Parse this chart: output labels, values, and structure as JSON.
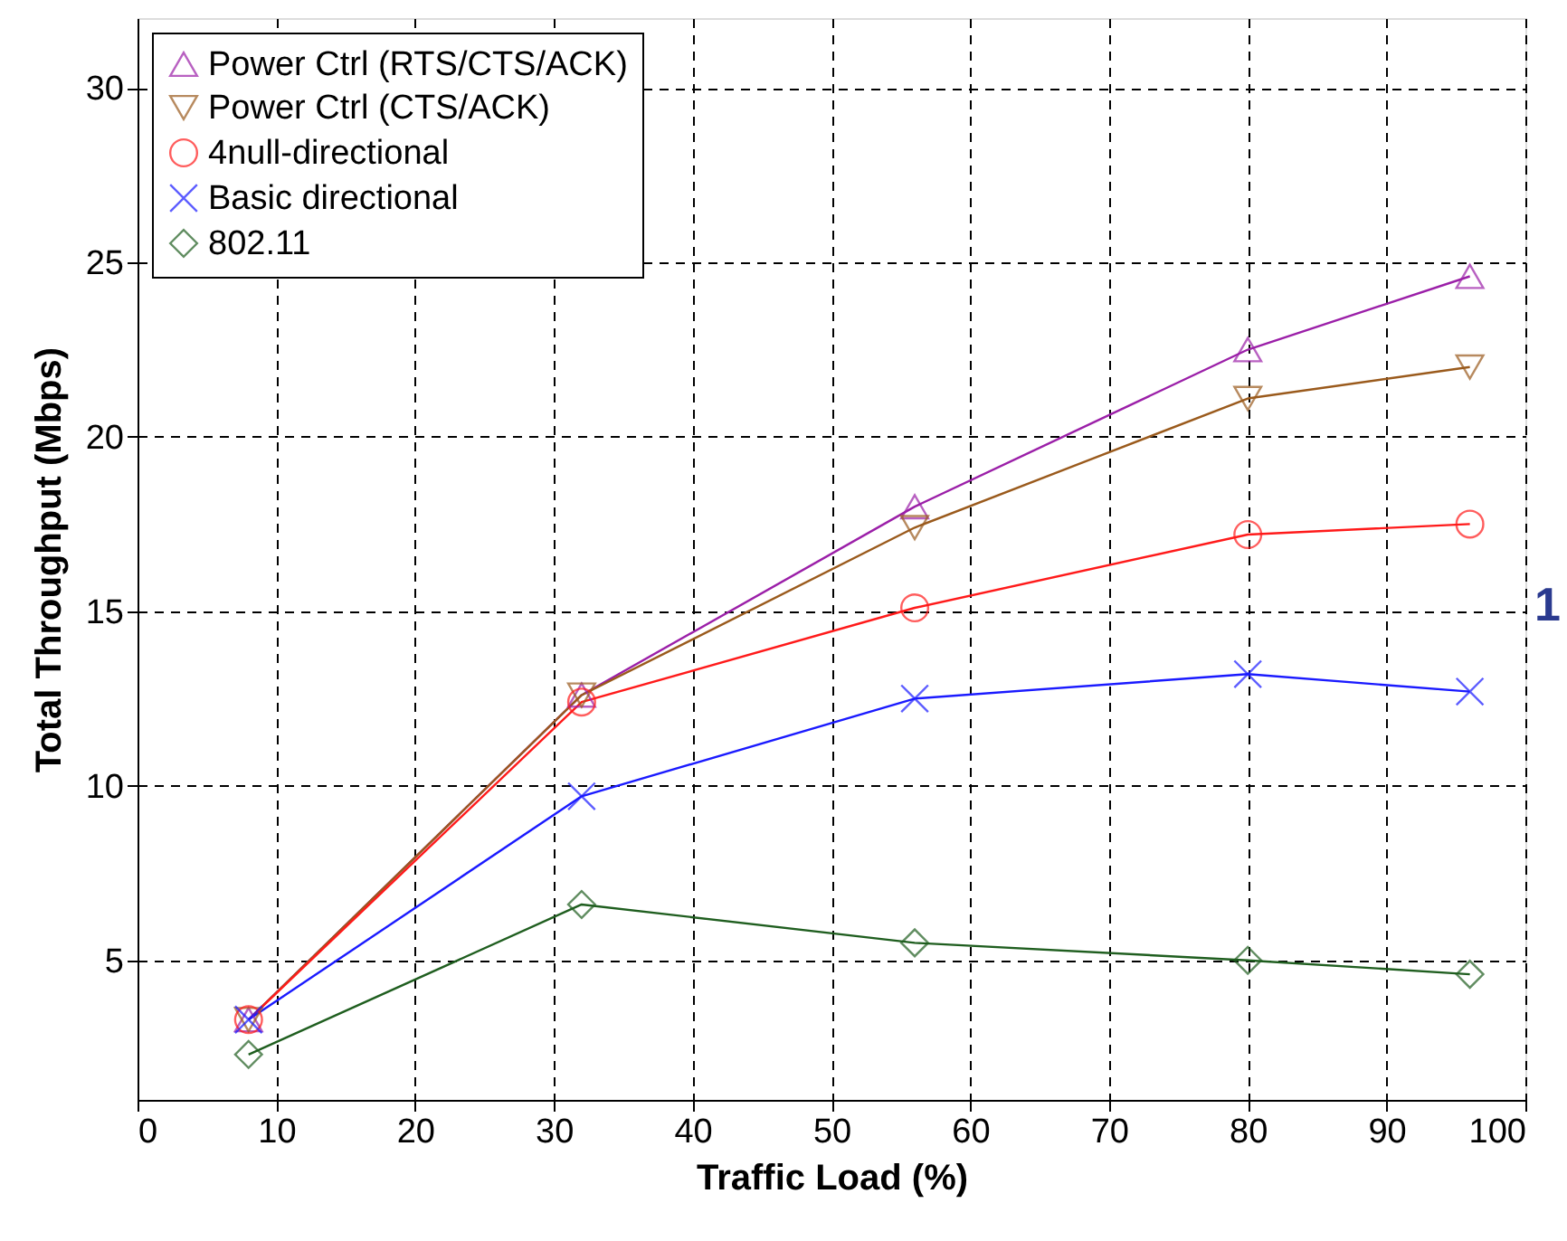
{
  "chart_data": {
    "type": "line",
    "xlabel": "Traffic Load (%)",
    "ylabel": "Total Throughput (Mbps)",
    "x": [
      8,
      32,
      56,
      80,
      96
    ],
    "xlim": [
      0,
      100
    ],
    "xticks": [
      0,
      10,
      20,
      30,
      40,
      50,
      60,
      70,
      80,
      90,
      100
    ],
    "ylim": [
      1,
      32
    ],
    "yticks": [
      5,
      10,
      15,
      20,
      25,
      30
    ],
    "grid": true,
    "legend": "top left",
    "line_style": "solid",
    "annotations": [
      "1"
    ],
    "series": [
      {
        "name": "Power Ctrl (RTS/CTS/ACK)",
        "color": "#9b1fa8",
        "marker": "triangle",
        "values": [
          3.3,
          12.6,
          18.0,
          22.5,
          24.6
        ]
      },
      {
        "name": "Power Ctrl (CTS/ACK)",
        "color": "#9a5a1c",
        "marker": "triangle-down",
        "values": [
          3.3,
          12.6,
          17.4,
          21.1,
          22.0
        ]
      },
      {
        "name": "4null-directional",
        "color": "#ff1a1a",
        "marker": "circle",
        "values": [
          3.3,
          12.4,
          15.1,
          17.2,
          17.5
        ]
      },
      {
        "name": "Basic directional",
        "color": "#1a1aff",
        "marker": "cross",
        "values": [
          3.3,
          9.7,
          12.5,
          13.2,
          12.7
        ]
      },
      {
        "name": "802.11",
        "color": "#1f5e1f",
        "marker": "diamond",
        "values": [
          2.3,
          6.6,
          5.5,
          5.0,
          4.6
        ]
      }
    ]
  }
}
